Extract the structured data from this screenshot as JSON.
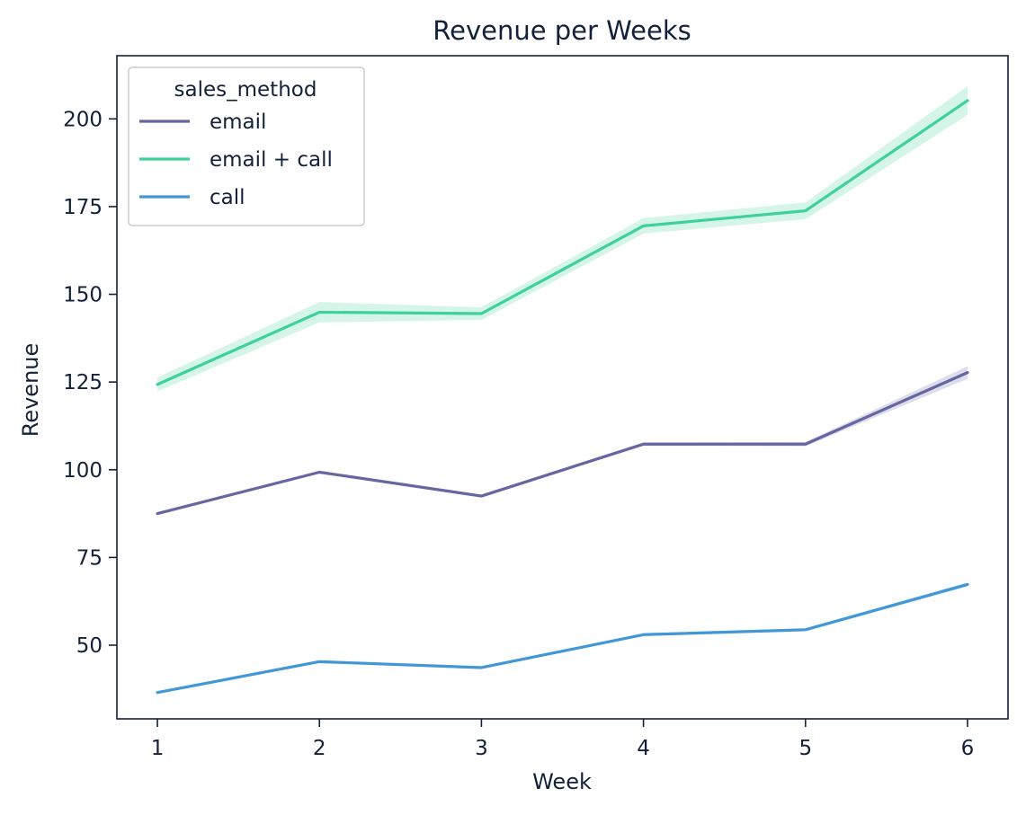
{
  "chart_data": {
    "type": "line",
    "title": "Revenue per Weeks",
    "xlabel": "Week",
    "ylabel": "Revenue",
    "x": [
      1,
      2,
      3,
      4,
      5,
      6
    ],
    "xticks": [
      "1",
      "2",
      "3",
      "4",
      "5",
      "6"
    ],
    "xlim": [
      0.75,
      6.25
    ],
    "yticks": [
      50,
      75,
      100,
      125,
      150,
      175,
      200
    ],
    "ylim": [
      29,
      218
    ],
    "grid": false,
    "legend": {
      "title": "sales_method",
      "placement": "top-left"
    },
    "series": [
      {
        "name": "email",
        "color": "#6666a3",
        "values": [
          87.5,
          99.3,
          92.5,
          107.3,
          107.3,
          127.7
        ],
        "ci_lower": [
          87.1,
          98.9,
          92.1,
          106.8,
          106.7,
          125.9
        ],
        "ci_upper": [
          87.9,
          99.7,
          92.9,
          107.8,
          107.9,
          129.5
        ]
      },
      {
        "name": "email + call",
        "color": "#3ed19a",
        "values": [
          124.3,
          144.9,
          144.5,
          169.5,
          173.8,
          205.2
        ],
        "ci_lower": [
          122.3,
          142.0,
          142.7,
          167.3,
          171.4,
          201.1
        ],
        "ci_upper": [
          126.3,
          147.8,
          146.3,
          171.7,
          176.2,
          209.3
        ]
      },
      {
        "name": "call",
        "color": "#4298d7",
        "values": [
          36.5,
          45.3,
          43.6,
          53.0,
          54.4,
          67.3
        ],
        "ci_lower": [
          36.1,
          44.9,
          43.2,
          52.6,
          54.0,
          66.7
        ],
        "ci_upper": [
          36.9,
          45.7,
          44.0,
          53.4,
          54.8,
          67.9
        ]
      }
    ]
  }
}
